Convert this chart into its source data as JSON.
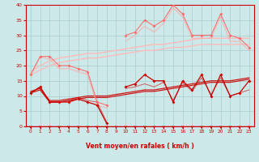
{
  "xlabel": "Vent moyen/en rafales ( km/h )",
  "background_color": "#cce8e8",
  "grid_color": "#aacccc",
  "x": [
    0,
    1,
    2,
    3,
    4,
    5,
    6,
    7,
    8,
    9,
    10,
    11,
    12,
    13,
    14,
    15,
    16,
    17,
    18,
    19,
    20,
    21,
    22,
    23
  ],
  "line_rafales_marked": [
    17,
    23,
    23,
    20,
    20,
    19,
    18,
    8,
    7,
    null,
    30,
    31,
    35,
    33,
    35,
    40,
    37,
    30,
    30,
    30,
    37,
    30,
    29,
    26
  ],
  "line_rafales_plain": [
    17,
    23,
    22,
    19,
    19,
    18,
    17,
    7,
    6,
    null,
    28,
    30,
    33,
    31,
    34,
    39,
    36,
    29,
    29,
    29,
    36,
    28,
    28,
    25
  ],
  "line_trend_upper": [
    18,
    20,
    21.5,
    22.5,
    23,
    23.5,
    24,
    24,
    24.5,
    25,
    25.5,
    26,
    26.5,
    27,
    27,
    27.5,
    28,
    28.5,
    29,
    29,
    29,
    29,
    29,
    29
  ],
  "line_trend_lower": [
    17,
    18.5,
    20,
    21,
    21.5,
    22,
    22.5,
    22.5,
    23,
    23.5,
    24,
    24.5,
    25,
    25,
    25.5,
    26,
    26,
    26.5,
    27,
    27,
    27,
    27,
    27,
    27
  ],
  "line_moyen_marked": [
    11,
    13,
    8,
    8,
    8,
    9,
    8,
    7,
    1,
    null,
    13,
    14,
    17,
    15,
    15,
    8,
    15,
    12,
    17,
    10,
    17,
    10,
    11,
    15
  ],
  "line_moyen_plain1": [
    11,
    13,
    8,
    8,
    8.5,
    9.5,
    8.5,
    8,
    1.5,
    null,
    12.5,
    13,
    14,
    13,
    14.5,
    8.5,
    14.5,
    11.5,
    16,
    10.5,
    16,
    10,
    11,
    12
  ],
  "line_trend_moyen_upper": [
    11.5,
    12.5,
    8.5,
    8.5,
    9,
    9.5,
    10,
    10,
    10,
    10.5,
    11,
    11.5,
    12,
    12,
    12.5,
    13,
    13.5,
    14,
    14.5,
    15,
    15,
    15,
    15.5,
    16
  ],
  "line_trend_moyen_lower": [
    11,
    12,
    8,
    8,
    8.5,
    9,
    9.5,
    9.5,
    9.5,
    10,
    10.5,
    11,
    11.5,
    11.5,
    12,
    12.5,
    13,
    13.5,
    14,
    14.5,
    14.5,
    14.5,
    15,
    15.5
  ],
  "ylim": [
    0,
    40
  ],
  "xlim": [
    -0.5,
    23.5
  ],
  "yticks": [
    0,
    5,
    10,
    15,
    20,
    25,
    30,
    35,
    40
  ],
  "xticks": [
    0,
    1,
    2,
    3,
    4,
    5,
    6,
    7,
    8,
    9,
    10,
    11,
    12,
    13,
    14,
    15,
    16,
    17,
    18,
    19,
    20,
    21,
    22,
    23
  ]
}
